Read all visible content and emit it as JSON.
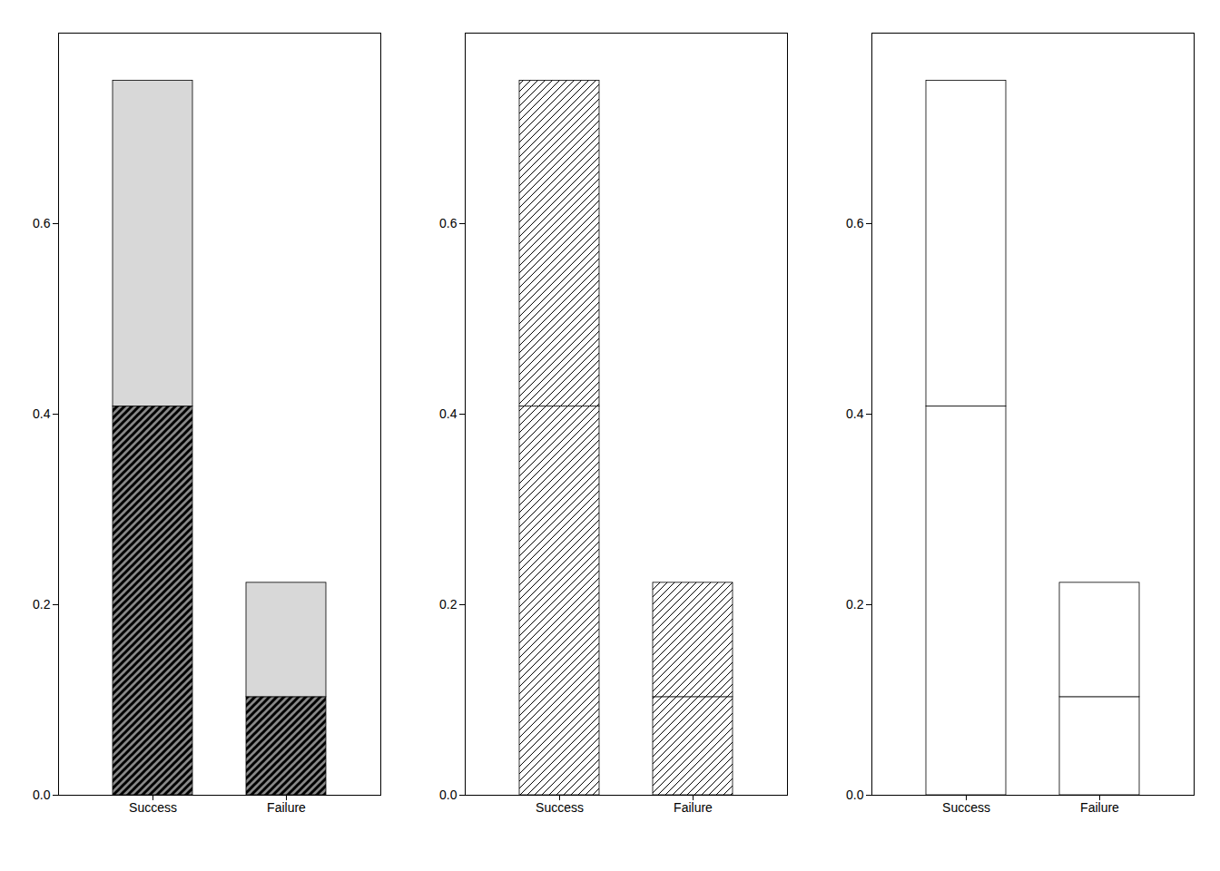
{
  "chart_data": [
    {
      "type": "bar",
      "stacked": true,
      "categories": [
        "Success",
        "Failure"
      ],
      "series": [
        {
          "color": "#888888",
          "values": [
            0.408,
            0.103
          ]
        },
        {
          "color": "#d8d8d8",
          "values": [
            0.342,
            0.12
          ]
        }
      ],
      "ylim": [
        0.0,
        0.8
      ],
      "yticks": [
        {
          "value": 0.0,
          "label": "0.0"
        },
        0.2,
        0.4,
        0.6
      ],
      "grid": false
    },
    {
      "type": "bar",
      "stacked": true,
      "categories": [
        "Success",
        "Failure"
      ],
      "series": [
        {
          "color": "#ffffff",
          "values": [
            0.408,
            0.103
          ]
        },
        {
          "color": "#ffffff",
          "values": [
            0.342,
            0.12
          ]
        }
      ],
      "ylim": [
        0.0,
        0.8
      ],
      "yticks": [
        {
          "value": 0.0,
          "label": "0.0"
        },
        0.2,
        0.4,
        0.6
      ],
      "grid": false
    },
    {
      "type": "bar",
      "stacked": true,
      "categories": [
        "Success",
        "Failure"
      ],
      "series": [
        {
          "color": "#ffffff",
          "values": [
            0.408,
            0.103
          ]
        },
        {
          "color": "#ffffff",
          "values": [
            0.342,
            0.12
          ]
        }
      ],
      "ylim": [
        0.0,
        0.8
      ],
      "yticks": [
        {
          "value": 0.0,
          "label": "0.0"
        },
        0.2,
        0.4,
        0.6
      ],
      "grid": false
    }
  ]
}
